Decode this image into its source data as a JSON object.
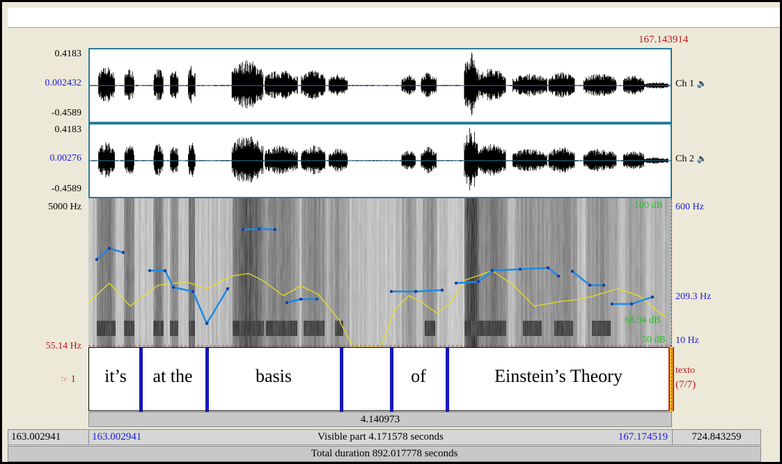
{
  "cursor_time": "167.143914",
  "channels": [
    {
      "label": "Ch 1",
      "top": "0.4183",
      "mid": "0.002432",
      "bottom": "-0.4589"
    },
    {
      "label": "Ch 2",
      "top": "0.4183",
      "mid": "0.00276",
      "bottom": "-0.4589"
    }
  ],
  "spectrogram": {
    "top_freq": "5000 Hz",
    "bottom_freq": "55.14 Hz",
    "pitch_top": "600 Hz",
    "pitch_mid": "209.3 Hz",
    "pitch_bottom": "10 Hz",
    "intensity_top": "100 dB",
    "intensity_mid": "68.94 dB",
    "intensity_bottom": "50 dB"
  },
  "tier": {
    "number": "1",
    "name": "texto",
    "count": "(7/7)",
    "segments": [
      "it’s",
      "at the",
      "basis",
      "of",
      "Einstein’s Theory"
    ]
  },
  "selection_duration": "4.140973",
  "visible": {
    "outer_start": "163.002941",
    "start": "163.002941",
    "label": "Visible part 4.171578 seconds",
    "end": "167.174519",
    "outer_end": "724.843259"
  },
  "total_duration": "Total duration 892.017778 seconds",
  "icons": {
    "speaker": "speaker-icon",
    "pointer": "hand-pointer-icon"
  }
}
